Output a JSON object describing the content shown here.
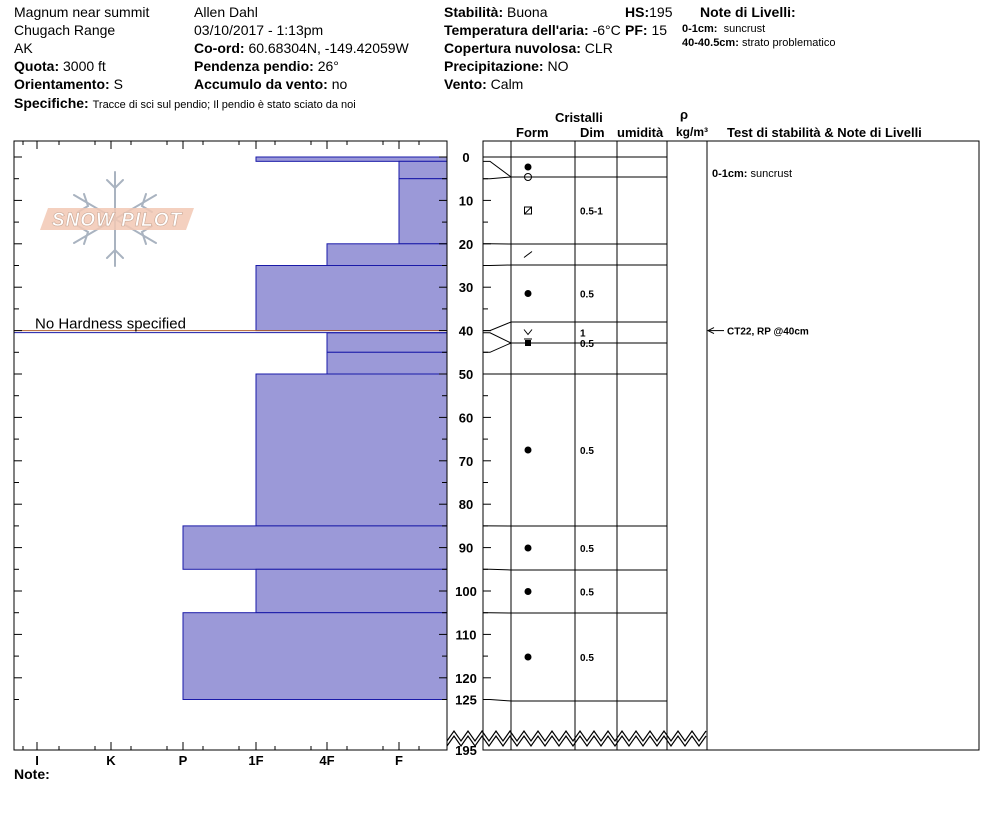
{
  "header": {
    "location": "Magnum near summit",
    "range": "Chugach Range",
    "state": "AK",
    "observer": "Allen Dahl",
    "datetime": "03/10/2017 - 1:13pm",
    "elevation_label": "Quota:",
    "elevation": "3000 ft",
    "aspect_label": "Orientamento:",
    "aspect": "S",
    "coord_label": "Co-ord:",
    "coord": "60.68304N, -149.42059W",
    "slope_label": "Pendenza pendio:",
    "slope": "26°",
    "wind_load_label": "Accumulo da vento:",
    "wind_load": "no",
    "specifics_label": "Specifiche:",
    "specifics": "Tracce di sci sul pendio;  Il pendio è stato sciato da noi",
    "stability_label": "Stabilità:",
    "stability": "Buona",
    "air_temp_label": "Temperatura dell'aria:",
    "air_temp": "-6°C",
    "sky_label": "Copertura nuvolosa:",
    "sky": "CLR",
    "precip_label": "Precipitazione:",
    "precip": "NO",
    "wind_label": "Vento:",
    "wind": "Calm",
    "hs_label": "HS:",
    "hs": "195",
    "pf_label": "PF:",
    "pf": "15",
    "layer_notes_title": "Note di Livelli:",
    "layer_notes": [
      {
        "range": "0-1cm:",
        "text": "suncrust"
      },
      {
        "range": "40-40.5cm:",
        "text": "strato problematico"
      }
    ]
  },
  "columns": {
    "crystals": "Cristalli",
    "form": "Form",
    "dim": "Dim",
    "humidity": "umidità",
    "rho": "ρ",
    "density_unit": "kg/m³",
    "stability_notes": "Test di stabilità & Note di Livelli"
  },
  "note_label": "Note:",
  "logo_text": "SNOW PILOT",
  "chart_data": {
    "type": "bar",
    "title": "",
    "no_hardness_label": "No Hardness specified",
    "hardness_categories": [
      "I",
      "K",
      "P",
      "1F",
      "4F",
      "F"
    ],
    "depth_ticks": [
      0,
      10,
      20,
      30,
      40,
      50,
      60,
      70,
      80,
      90,
      100,
      110,
      120,
      125,
      195
    ],
    "ylim": [
      0,
      195
    ],
    "depth_break": [
      125,
      195
    ],
    "layers": [
      {
        "top": 0,
        "bottom": 1,
        "hardness": "1F",
        "form": "round",
        "dim": ""
      },
      {
        "top": 1,
        "bottom": 5,
        "hardness": "F",
        "form": "circle",
        "dim": ""
      },
      {
        "top": 5,
        "bottom": 20,
        "hardness": "F",
        "form": "faceted-round",
        "dim": "0.5-1"
      },
      {
        "top": 20,
        "bottom": 25,
        "hardness": "4F",
        "form": "precip",
        "dim": ""
      },
      {
        "top": 25,
        "bottom": 40,
        "hardness": "1F",
        "form": "round",
        "dim": "0.5"
      },
      {
        "top": 40,
        "bottom": 40.5,
        "hardness": "",
        "form": "surface-hoar",
        "dim": "1"
      },
      {
        "top": 40.5,
        "bottom": 45,
        "hardness": "4F",
        "form": "melt-freeze",
        "dim": "0.5"
      },
      {
        "top": 45,
        "bottom": 50,
        "hardness": "4F",
        "form": "",
        "dim": ""
      },
      {
        "top": 50,
        "bottom": 85,
        "hardness": "1F",
        "form": "round",
        "dim": "0.5"
      },
      {
        "top": 85,
        "bottom": 95,
        "hardness": "P",
        "form": "round",
        "dim": "0.5"
      },
      {
        "top": 95,
        "bottom": 105,
        "hardness": "1F",
        "form": "round",
        "dim": "0.5"
      },
      {
        "top": 105,
        "bottom": 125,
        "hardness": "P",
        "form": "round",
        "dim": "0.5"
      }
    ],
    "layer_boundaries": [
      1,
      5,
      20,
      25,
      40,
      40.5,
      45,
      50,
      85,
      95,
      105,
      125
    ],
    "annotations": [
      {
        "depth": 0.5,
        "text_range": "0-1cm:",
        "text": "suncrust"
      },
      {
        "depth": 40,
        "text_range": "",
        "text": "CT22, RP @40cm"
      }
    ],
    "colors": {
      "fill": "#9b99d8",
      "edge": "#1a1aa8",
      "weak_layer": "#b06030"
    }
  }
}
